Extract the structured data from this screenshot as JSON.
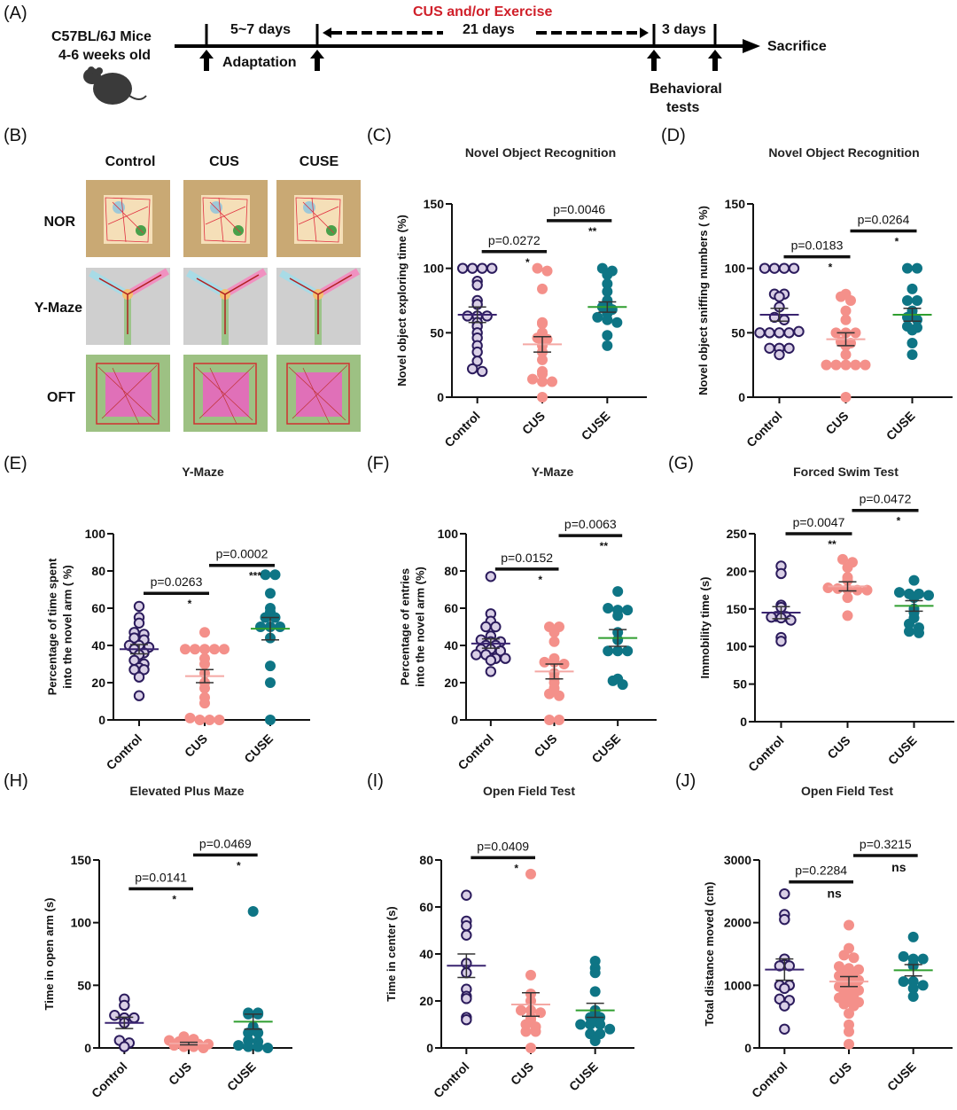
{
  "panels": {
    "A": "(A)",
    "B": "(B)",
    "C": "(C)",
    "D": "(D)",
    "E": "(E)",
    "F": "(F)",
    "G": "(G)",
    "H": "(H)",
    "I": "(I)",
    "J": "(J)"
  },
  "timeline": {
    "subject_line1": "C57BL/6J  Mice",
    "subject_line2": "4-6 weeks old",
    "period1": "5~7 days",
    "period1_label": "Adaptation",
    "treatment_label": "CUS and/or Exercise",
    "period2": "21 days",
    "period3": "3 days",
    "period3_label_line1": "Behavioral",
    "period3_label_line2": "tests",
    "end_label": "Sacrifice",
    "colors": {
      "treatment": "#d0202a",
      "line": "#000000"
    }
  },
  "trackplots": {
    "columns": [
      "Control",
      "CUS",
      "CUSE"
    ],
    "rows": [
      "NOR",
      "Y-Maze",
      "OFT"
    ]
  },
  "groups": [
    "Control",
    "CUS",
    "CUSE"
  ],
  "group_colors": {
    "Control": {
      "fill": "#d9cfe6",
      "stroke": "#2b1b5c",
      "mean": "#3a2470"
    },
    "CUS": {
      "fill": "#f4908a",
      "stroke": "#f4908a",
      "mean": "#f4a8a4"
    },
    "CUSE": {
      "fill": "#0e7585",
      "stroke": "#0e7585",
      "mean": "#2f9e2f"
    }
  },
  "chart_data": [
    {
      "id": "C",
      "type": "scatter",
      "title": "Novel Object Recognition",
      "ylabel": "Novel object exploring time (%)",
      "ylim": [
        0,
        150
      ],
      "yticks": [
        0,
        50,
        100,
        150
      ],
      "categories": [
        "Control",
        "CUS",
        "CUSE"
      ],
      "series": [
        {
          "name": "Control",
          "values": [
            100,
            100,
            100,
            100,
            90,
            87,
            75,
            72,
            63,
            63,
            63,
            58,
            55,
            50,
            46,
            40,
            35,
            28,
            22,
            20
          ],
          "mean": 64,
          "sem": 6
        },
        {
          "name": "CUS",
          "values": [
            100,
            98,
            84,
            58,
            57,
            50,
            46,
            45,
            44,
            40,
            35,
            29,
            20,
            18,
            14,
            12,
            12,
            0
          ],
          "mean": 41,
          "sem": 6
        },
        {
          "name": "CUSE",
          "values": [
            100,
            98,
            95,
            88,
            82,
            75,
            72,
            70,
            68,
            65,
            62,
            60,
            58,
            48,
            40
          ],
          "mean": 70,
          "sem": 4
        }
      ],
      "comparisons": [
        {
          "from": "Control",
          "to": "CUS",
          "p": "p=0.0272",
          "sig": "*",
          "y": 113
        },
        {
          "from": "CUS",
          "to": "CUSE",
          "p": "p=0.0046",
          "sig": "**",
          "y": 137
        }
      ]
    },
    {
      "id": "D",
      "type": "scatter",
      "title": "Novel Object Recognition",
      "ylabel": "Novel object sniffing numbers ( %)",
      "ylim": [
        0,
        150
      ],
      "yticks": [
        0,
        50,
        100,
        150
      ],
      "categories": [
        "Control",
        "CUS",
        "CUSE"
      ],
      "series": [
        {
          "name": "Control",
          "values": [
            100,
            100,
            100,
            100,
            80,
            80,
            78,
            70,
            62,
            60,
            50,
            50,
            50,
            50,
            51,
            38,
            38,
            38,
            33
          ],
          "mean": 64,
          "sem": 5
        },
        {
          "name": "CUS",
          "values": [
            80,
            78,
            75,
            67,
            60,
            50,
            50,
            50,
            43,
            42,
            40,
            33,
            25,
            25,
            25,
            25,
            25,
            0
          ],
          "mean": 45,
          "sem": 5
        },
        {
          "name": "CUSE",
          "values": [
            100,
            100,
            84,
            75,
            75,
            67,
            63,
            62,
            60,
            55,
            54,
            52,
            42,
            33
          ],
          "mean": 64,
          "sem": 5
        }
      ],
      "comparisons": [
        {
          "from": "Control",
          "to": "CUS",
          "p": "p=0.0183",
          "sig": "*",
          "y": 109
        },
        {
          "from": "CUS",
          "to": "CUSE",
          "p": "p=0.0264",
          "sig": "*",
          "y": 129
        }
      ]
    },
    {
      "id": "E",
      "type": "scatter",
      "title": "Y-Maze",
      "ylabel": "Percentage of time spent\ninto the novel arm ( %)",
      "ylim": [
        0,
        100
      ],
      "yticks": [
        0,
        20,
        40,
        60,
        80,
        100
      ],
      "categories": [
        "Control",
        "CUS",
        "CUSE"
      ],
      "series": [
        {
          "name": "Control",
          "values": [
            61,
            55,
            52,
            47,
            46,
            44,
            43,
            40,
            40,
            39,
            38,
            36,
            35,
            32,
            30,
            28,
            27,
            27,
            23,
            13
          ],
          "mean": 38,
          "sem": 2.5
        },
        {
          "name": "CUS",
          "values": [
            47,
            38,
            38,
            38,
            38,
            38,
            33,
            30,
            25,
            20,
            17,
            12,
            9,
            1,
            0,
            0,
            0
          ],
          "mean": 23.5,
          "sem": 3.5
        },
        {
          "name": "CUSE",
          "values": [
            78,
            78,
            68,
            60,
            58,
            55,
            55,
            50,
            50,
            50,
            44,
            29,
            20,
            0
          ],
          "mean": 49,
          "sem": 6
        }
      ],
      "comparisons": [
        {
          "from": "Control",
          "to": "CUS",
          "p": "p=0.0263",
          "sig": "*",
          "y": 68
        },
        {
          "from": "CUS",
          "to": "CUSE",
          "p": "p=0.0002",
          "sig": "***",
          "y": 83
        }
      ]
    },
    {
      "id": "F",
      "type": "scatter",
      "title": "Y-Maze",
      "ylabel": "Percentage of entries\ninto the novel arm (%)",
      "ylim": [
        0,
        100
      ],
      "yticks": [
        0,
        20,
        40,
        60,
        80,
        100
      ],
      "categories": [
        "Control",
        "CUS",
        "CUSE"
      ],
      "series": [
        {
          "name": "Control",
          "values": [
            77,
            57,
            53,
            50,
            50,
            45,
            43,
            42,
            42,
            40,
            40,
            38,
            38,
            37,
            35,
            35,
            33,
            33,
            32,
            26
          ],
          "mean": 41,
          "sem": 2.5
        },
        {
          "name": "CUS",
          "values": [
            50,
            50,
            47,
            42,
            33,
            31,
            31,
            30,
            25,
            22,
            20,
            17,
            14,
            13,
            0,
            0
          ],
          "mean": 26,
          "sem": 4
        },
        {
          "name": "CUSE",
          "values": [
            69,
            60,
            59,
            59,
            56,
            47,
            43,
            37,
            37,
            37,
            22,
            21,
            19
          ],
          "mean": 44,
          "sem": 4.5
        }
      ],
      "comparisons": [
        {
          "from": "Control",
          "to": "CUS",
          "p": "p=0.0152",
          "sig": "*",
          "y": 81
        },
        {
          "from": "CUS",
          "to": "CUSE",
          "p": "p=0.0063",
          "sig": "**",
          "y": 99
        }
      ]
    },
    {
      "id": "G",
      "type": "scatter",
      "title": "Forced Swim Test",
      "ylabel": "Immobility time (s)",
      "ylim": [
        0,
        250
      ],
      "yticks": [
        0,
        50,
        100,
        150,
        200,
        250
      ],
      "categories": [
        "Control",
        "CUS",
        "CUSE"
      ],
      "series": [
        {
          "name": "Control",
          "values": [
            207,
            197,
            155,
            152,
            140,
            140,
            139,
            138,
            135,
            112,
            107
          ],
          "mean": 145,
          "sem": 8
        },
        {
          "name": "CUS",
          "values": [
            216,
            212,
            205,
            192,
            188,
            178,
            177,
            176,
            175,
            175,
            165,
            141
          ],
          "mean": 180,
          "sem": 6
        },
        {
          "name": "CUSE",
          "values": [
            188,
            172,
            170,
            170,
            168,
            165,
            150,
            145,
            138,
            130,
            125,
            120,
            118
          ],
          "mean": 154,
          "sem": 7
        }
      ],
      "comparisons": [
        {
          "from": "Control",
          "to": "CUS",
          "p": "p=0.0047",
          "sig": "**",
          "y": 250
        },
        {
          "from": "CUS",
          "to": "CUSE",
          "p": "p=0.0472",
          "sig": "*",
          "y": 281
        }
      ]
    },
    {
      "id": "H",
      "type": "scatter",
      "title": "Elevated Plus Maze",
      "ylabel": "Time in open arm (s)",
      "ylim": [
        0,
        150
      ],
      "yticks": [
        0,
        50,
        100,
        150
      ],
      "categories": [
        "Control",
        "CUS",
        "CUSE"
      ],
      "series": [
        {
          "name": "Control",
          "values": [
            39,
            34,
            26,
            24,
            24,
            20,
            6,
            4,
            1
          ],
          "mean": 20,
          "sem": 4.5
        },
        {
          "name": "CUS",
          "values": [
            9,
            7,
            6,
            5,
            4,
            3,
            3,
            2,
            1,
            1,
            0
          ],
          "mean": 3.5,
          "sem": 1
        },
        {
          "name": "CUSE",
          "values": [
            109,
            28,
            28,
            27,
            27,
            17,
            12,
            12,
            6,
            5,
            2,
            1,
            1,
            0
          ],
          "mean": 21,
          "sem": 6
        }
      ],
      "comparisons": [
        {
          "from": "Control",
          "to": "CUS",
          "p": "p=0.0141",
          "sig": "*",
          "y": 127
        },
        {
          "from": "CUS",
          "to": "CUSE",
          "p": "p=0.0469",
          "sig": "*",
          "y": 154
        }
      ]
    },
    {
      "id": "I",
      "type": "scatter",
      "title": "Open Field Test",
      "ylabel": "Time in center (s)",
      "ylim": [
        0,
        80
      ],
      "yticks": [
        0,
        20,
        40,
        60,
        80
      ],
      "categories": [
        "Control",
        "CUS",
        "CUSE"
      ],
      "series": [
        {
          "name": "Control",
          "values": [
            65,
            54,
            52,
            48,
            36,
            32,
            25,
            22,
            21,
            13,
            12
          ],
          "mean": 35,
          "sem": 5
        },
        {
          "name": "CUS",
          "values": [
            74,
            31,
            23,
            20,
            16,
            16,
            15,
            13,
            12,
            10,
            9,
            7,
            7,
            0
          ],
          "mean": 18.5,
          "sem": 5
        },
        {
          "name": "CUSE",
          "values": [
            37,
            34,
            32,
            24,
            16,
            13,
            13,
            12,
            10,
            10,
            10,
            8,
            6,
            6,
            3
          ],
          "mean": 16,
          "sem": 3
        }
      ],
      "comparisons": [
        {
          "from": "Control",
          "to": "CUS",
          "p": "p=0.0409",
          "sig": "*",
          "y": 81
        }
      ]
    },
    {
      "id": "J",
      "type": "scatter",
      "title": "Open Field Test",
      "ylabel": "Total distance moved (cm)",
      "ylim": [
        0,
        3000
      ],
      "yticks": [
        0,
        1000,
        2000,
        3000
      ],
      "categories": [
        "Control",
        "CUS",
        "CUSE"
      ],
      "series": [
        {
          "name": "Control",
          "values": [
            2460,
            2130,
            2050,
            1420,
            1330,
            1310,
            1310,
            1000,
            1000,
            950,
            780,
            760,
            670,
            300
          ],
          "mean": 1250,
          "sem": 170
        },
        {
          "name": "CUS",
          "values": [
            1960,
            1590,
            1480,
            1440,
            1300,
            1270,
            1250,
            1200,
            1180,
            1150,
            1100,
            1080,
            1020,
            1000,
            980,
            950,
            920,
            880,
            850,
            800,
            760,
            730,
            700,
            670,
            550,
            370,
            260,
            60
          ],
          "mean": 1060,
          "sem": 80
        },
        {
          "name": "CUSE",
          "values": [
            1770,
            1460,
            1420,
            1420,
            1330,
            1310,
            1060,
            1060,
            1000,
            950,
            820
          ],
          "mean": 1240,
          "sem": 90
        }
      ],
      "comparisons": [
        {
          "from": "Control",
          "to": "CUS",
          "p": "p=0.2284",
          "sig": "ns",
          "y": 2650
        },
        {
          "from": "CUS",
          "to": "CUSE",
          "p": "p=0.3215",
          "sig": "ns",
          "y": 3070
        }
      ]
    }
  ]
}
